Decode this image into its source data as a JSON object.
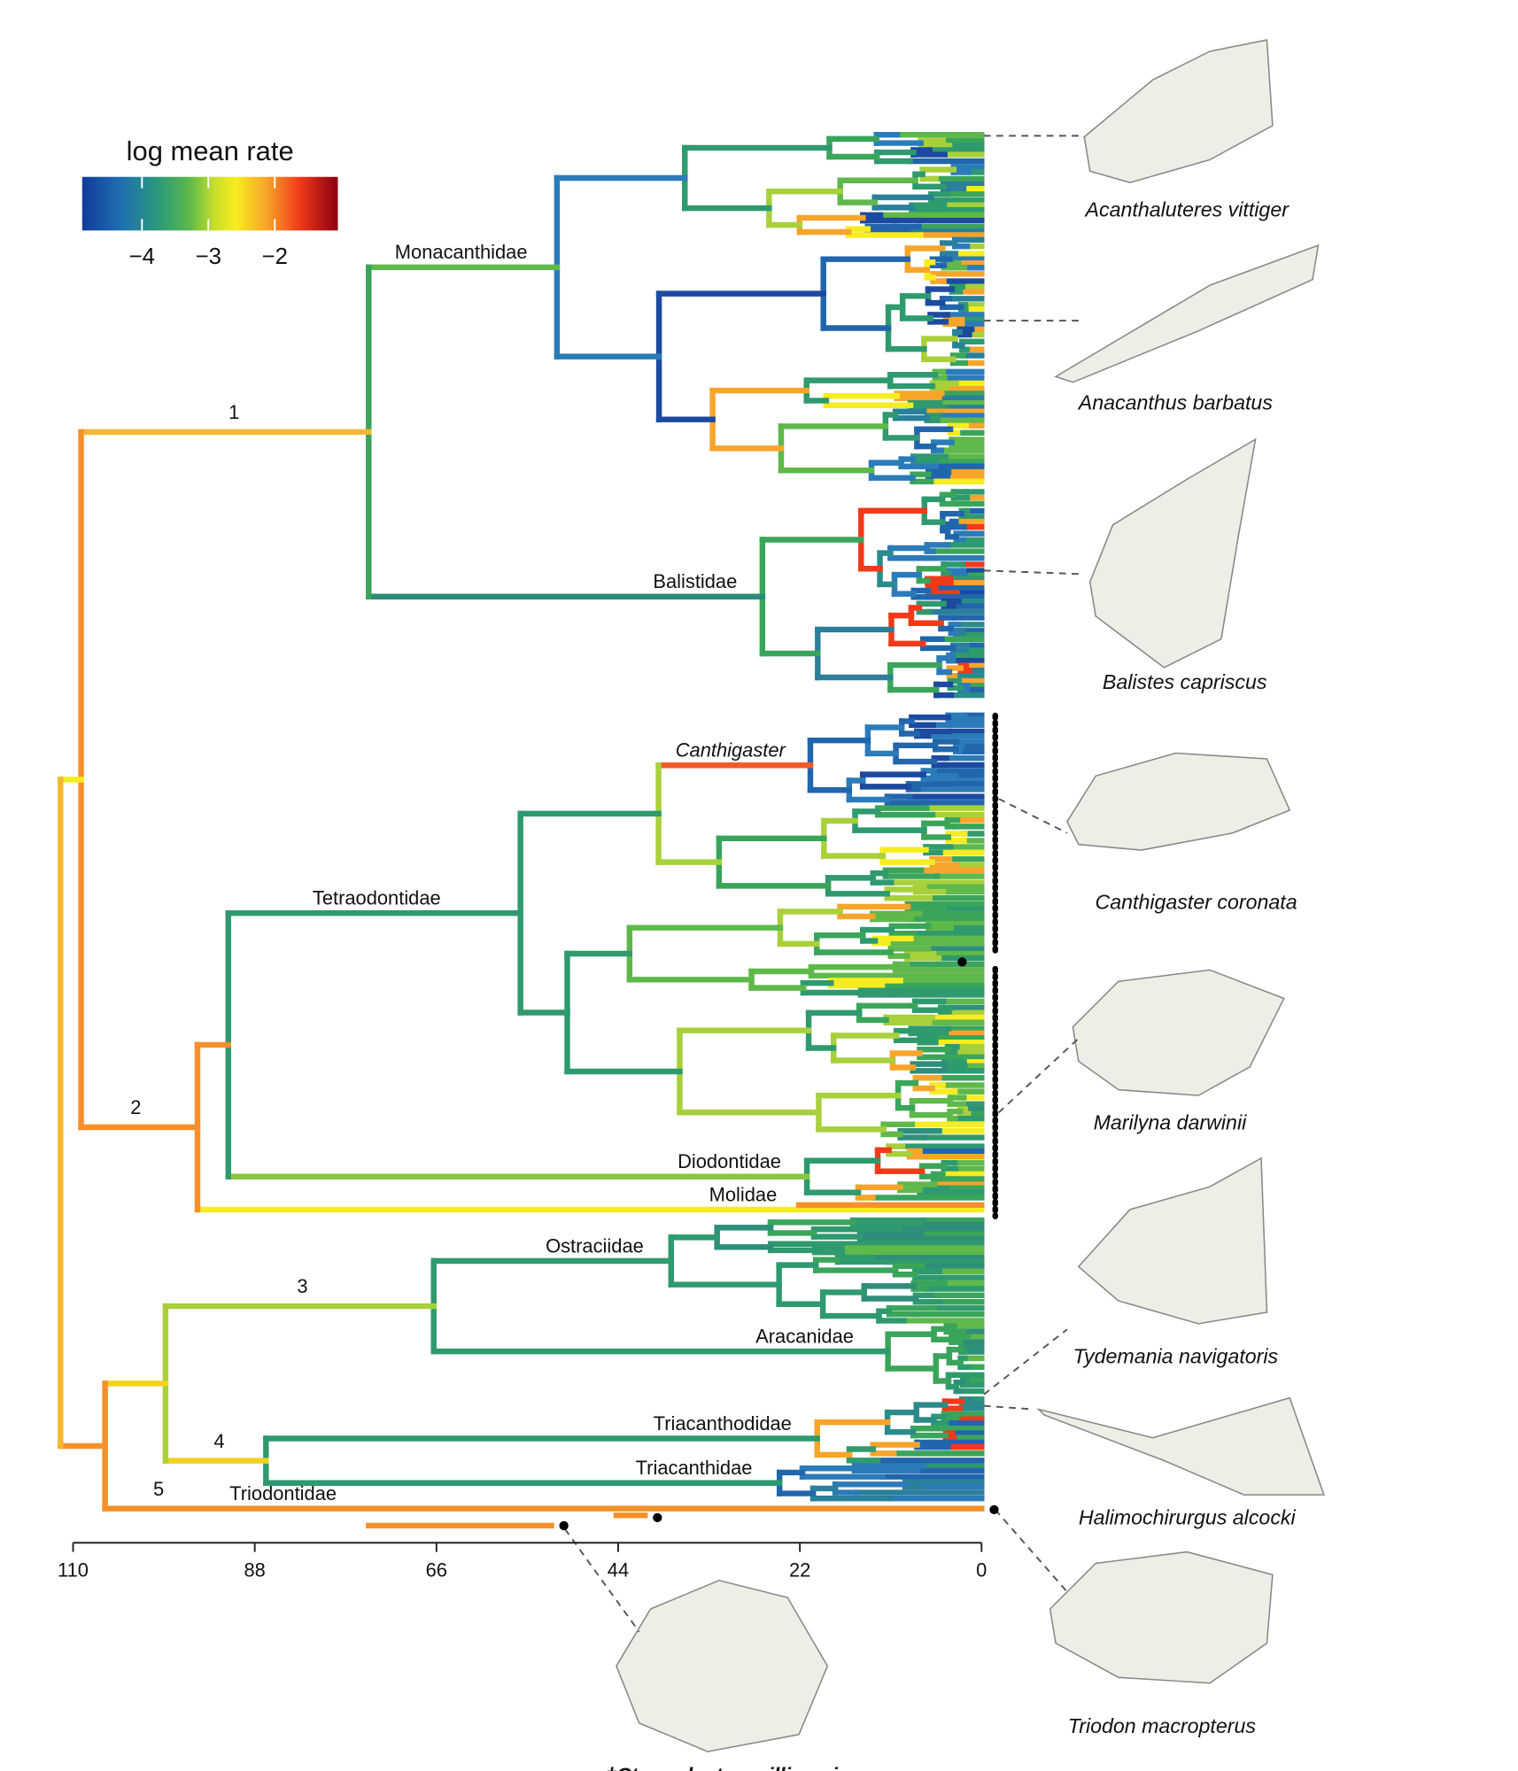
{
  "legend": {
    "title": "log mean rate",
    "range": [
      -4.9,
      -1.05
    ],
    "ticks": [
      {
        "value": -4,
        "label": "−4"
      },
      {
        "value": -3,
        "label": "−3"
      },
      {
        "value": -2,
        "label": "−2"
      }
    ]
  },
  "axis": {
    "xlim": [
      110,
      0
    ],
    "ticks": [
      110,
      88,
      66,
      44,
      22,
      0
    ]
  },
  "clades": {
    "branch_numbers": [
      "1",
      "2",
      "3",
      "4",
      "5"
    ],
    "families": [
      "Monacanthidae",
      "Balistidae",
      "Canthigaster",
      "Tetraodontidae",
      "Diodontidae",
      "Molidae",
      "Ostraciidae",
      "Aracanidae",
      "Triacanthodidae",
      "Triacanthidae",
      "Triodontidae"
    ]
  },
  "species": [
    "Acanthaluteres vittiger",
    "Anacanthus barbatus",
    "Balistes capriscus",
    "Canthigaster coronata",
    "Marilyna darwinii",
    "Tydemania navigatoris",
    "Halimochirurgus alcocki",
    "Triodon macropterus",
    "†Ctenoplectus williamsi"
  ]
}
